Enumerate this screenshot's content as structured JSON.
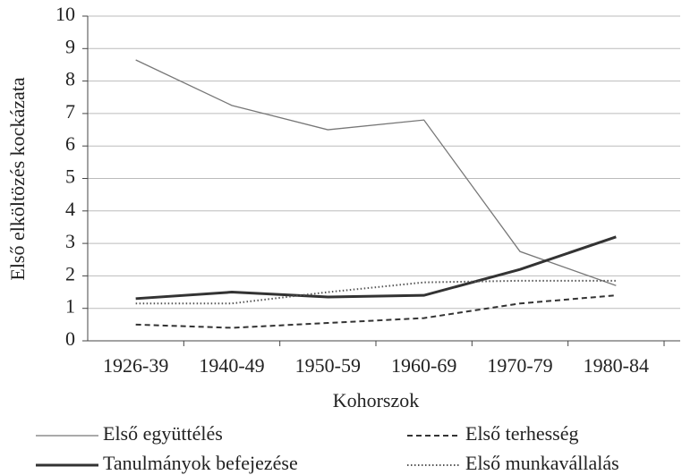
{
  "chart_data": {
    "type": "line",
    "y_label": "Első elköltözés kockázata",
    "x_label": "Kohorszok",
    "categories": [
      "1926-39",
      "1940-49",
      "1950-59",
      "1960-69",
      "1970-79",
      "1980-84"
    ],
    "series": [
      {
        "name": "Első együttélés",
        "color": "#777777",
        "linestyle": "solid",
        "linewidth": 1.3,
        "values": [
          8.65,
          7.25,
          6.5,
          6.8,
          2.75,
          1.7
        ]
      },
      {
        "name": "Első terhesség",
        "color": "#333333",
        "linestyle": "dashed",
        "linewidth": 2,
        "values": [
          0.5,
          0.4,
          0.55,
          0.7,
          1.15,
          1.4
        ]
      },
      {
        "name": "Tanulmányok befejezése",
        "color": "#333333",
        "linestyle": "solid",
        "linewidth": 3,
        "values": [
          1.3,
          1.5,
          1.35,
          1.4,
          2.2,
          3.2
        ]
      },
      {
        "name": "Első munkavállalás",
        "color": "#555555",
        "linestyle": "dotted",
        "linewidth": 2,
        "values": [
          1.15,
          1.15,
          1.5,
          1.8,
          1.85,
          1.85
        ]
      }
    ],
    "ylim": [
      0,
      10
    ],
    "yticks": [
      0,
      1,
      2,
      3,
      4,
      5,
      6,
      7,
      8,
      9,
      10
    ],
    "grid": true,
    "legend": "bottom"
  }
}
